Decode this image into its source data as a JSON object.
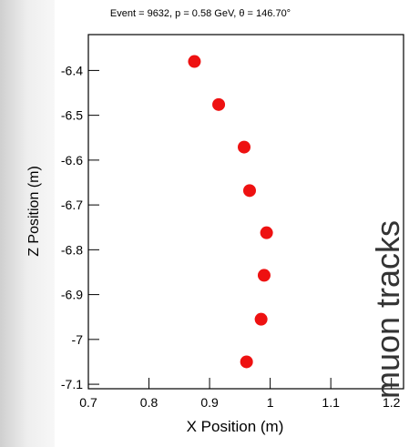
{
  "chart_data": {
    "type": "scatter",
    "title": "Event = 9632, p = 0.58 GeV, θ = 146.70°",
    "x_label": "X Position (m)",
    "y_label": "Z Position (m)",
    "annotation": "muon tracks",
    "x": [
      0.875,
      0.915,
      0.957,
      0.966,
      0.994,
      0.99,
      0.985,
      0.961
    ],
    "values": [
      -6.38,
      -6.476,
      -6.571,
      -6.668,
      -6.762,
      -6.857,
      -6.955,
      -7.05
    ],
    "color": "#ee1111",
    "xlim": [
      0.7,
      1.22
    ],
    "xticks": [
      0.7,
      0.8,
      0.9,
      1,
      1.1,
      1.2
    ],
    "ylim": [
      -7.11,
      -6.32
    ],
    "yticks": [
      -6.4,
      -6.5,
      -6.6,
      -6.7,
      -6.8,
      -6.9,
      -7,
      -7.1
    ]
  }
}
